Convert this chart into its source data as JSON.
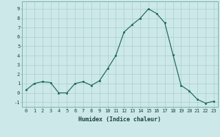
{
  "x": [
    0,
    1,
    2,
    3,
    4,
    5,
    6,
    7,
    8,
    9,
    10,
    11,
    12,
    13,
    14,
    15,
    16,
    17,
    18,
    19,
    20,
    21,
    22,
    23
  ],
  "y": [
    0.3,
    1.0,
    1.2,
    1.1,
    0.0,
    0.0,
    1.0,
    1.2,
    0.8,
    1.3,
    2.6,
    4.0,
    6.5,
    7.3,
    8.0,
    9.0,
    8.5,
    7.5,
    4.1,
    0.8,
    0.2,
    -0.7,
    -1.1,
    -0.9
  ],
  "xlabel": "Humidex (Indice chaleur)",
  "ylim": [
    -1.5,
    9.8
  ],
  "xlim": [
    -0.5,
    23.5
  ],
  "yticks": [
    -1,
    0,
    1,
    2,
    3,
    4,
    5,
    6,
    7,
    8,
    9
  ],
  "xticks": [
    0,
    1,
    2,
    3,
    4,
    5,
    6,
    7,
    8,
    9,
    10,
    11,
    12,
    13,
    14,
    15,
    16,
    17,
    18,
    19,
    20,
    21,
    22,
    23
  ],
  "line_color": "#1f6b5e",
  "marker_color": "#1f6b5e",
  "bg_color": "#cce8e8",
  "grid_color": "#aacece",
  "axes_color": "#7aafaf",
  "tick_label_color": "#1a4040",
  "xlabel_color": "#1a4040",
  "tick_fontsize": 5.0,
  "xlabel_fontsize": 6.0,
  "line_width": 0.9,
  "marker_size": 2.0
}
